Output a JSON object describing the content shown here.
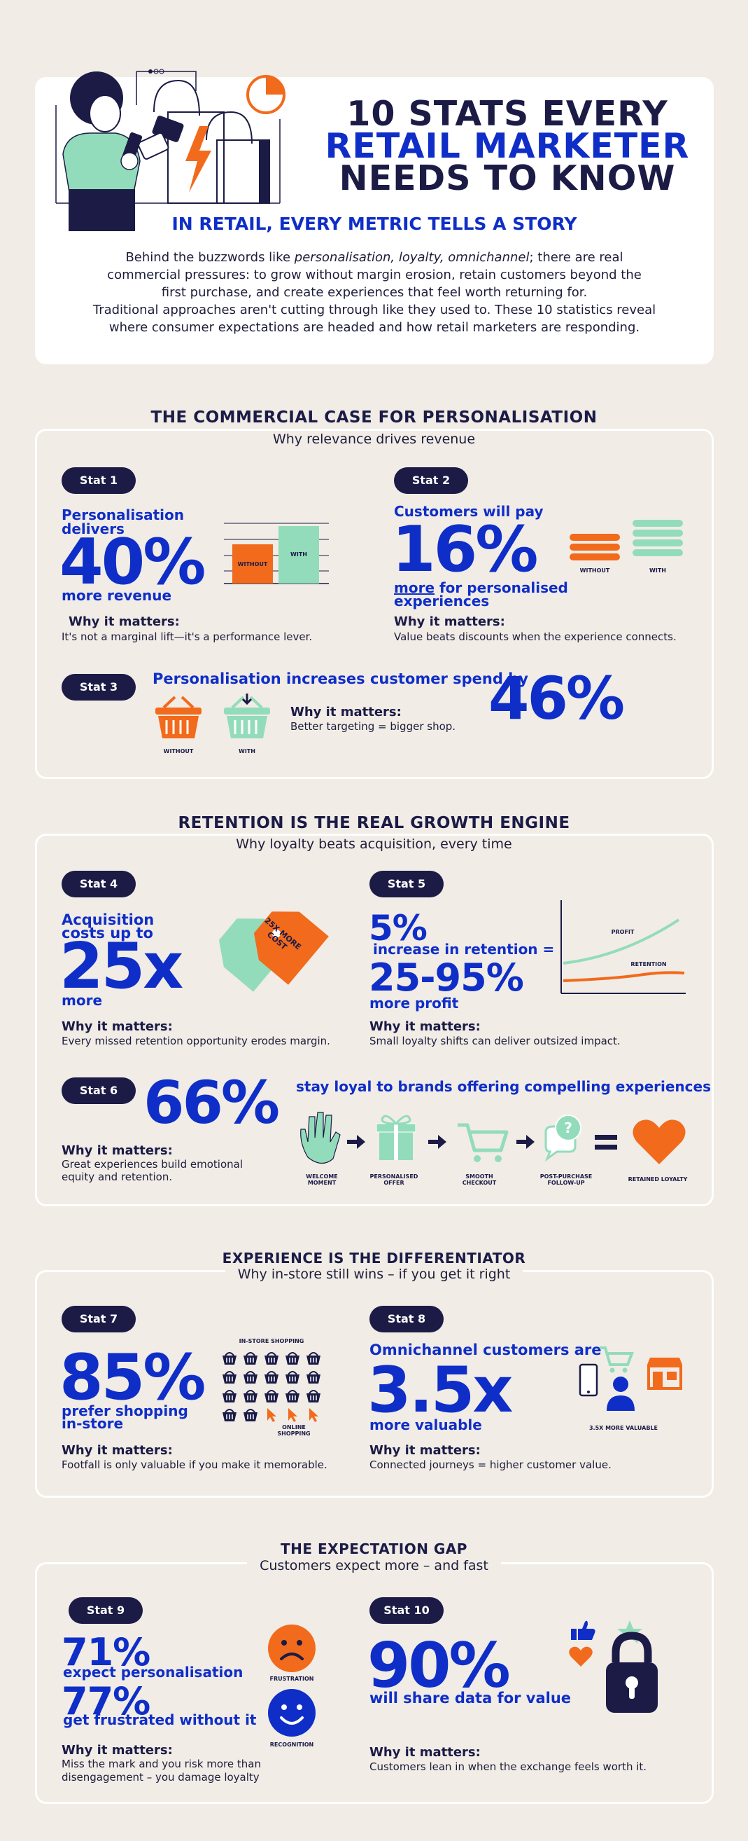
{
  "header": {
    "title_line1": "10 STATS EVERY",
    "title_line2": "RETAIL MARKETER",
    "title_line3": "NEEDS TO KNOW",
    "subtitle": "IN RETAIL, EVERY METRIC TELLS A STORY",
    "intro_1a": "Behind the buzzwords like ",
    "intro_1b": "personalisation, loyalty, omnichannel",
    "intro_1c": "; there are real",
    "intro_2": "commercial pressures: to grow without margin erosion, retain customers beyond the",
    "intro_3": "first purchase, and create experiences that feel worth returning for.",
    "intro_4": "Traditional approaches aren't cutting through like they used to. These 10 statistics reveal",
    "intro_5": "where consumer expectations are headed and how retail marketers are responding."
  },
  "section1": {
    "title": "THE COMMERCIAL CASE FOR PERSONALISATION",
    "subtitle": "Why relevance drives revenue",
    "stat1": {
      "pill": "Stat 1",
      "lead1": "Personalisation",
      "lead2": "delivers",
      "value": "40%",
      "tail": "more revenue",
      "wm_title": "Why it matters:",
      "wm_text": "It's not a marginal lift—it's a performance lever.",
      "chart_without": "WITHOUT",
      "chart_with": "WITH"
    },
    "stat2": {
      "pill": "Stat 2",
      "lead": "Customers will pay",
      "value": "16%",
      "tail_u": "more",
      "tail_rest": " for personalised",
      "tail2": "experiences",
      "wm_title": "Why it matters:",
      "wm_text": "Value beats discounts when the experience connects.",
      "label_without": "WITHOUT",
      "label_with": "WITH"
    },
    "stat3": {
      "pill": "Stat 3",
      "lead": "Personalisation increases customer spend by",
      "value": "46%",
      "wm_title": "Why it matters:",
      "wm_text": "Better targeting = bigger shop.",
      "label_without": "WITHOUT",
      "label_with": "WITH"
    }
  },
  "section2": {
    "title": "RETENTION IS THE REAL GROWTH ENGINE",
    "subtitle": "Why loyalty beats acquisition, every time",
    "stat4": {
      "pill": "Stat 4",
      "lead1": "Acquisition",
      "lead2": "costs up to",
      "value": "25x",
      "tail": "more",
      "tag_text": "25X MORE COST",
      "wm_title": "Why it matters:",
      "wm_text": "Every missed retention opportunity erodes margin."
    },
    "stat5": {
      "pill": "Stat 5",
      "value1": "5%",
      "lead": "increase in retention =",
      "value2": "25-95%",
      "tail": "more profit",
      "label_profit": "PROFIT",
      "label_retention": "RETENTION",
      "wm_title": "Why it matters:",
      "wm_text": "Small loyalty shifts can deliver outsized impact."
    },
    "stat6": {
      "pill": "Stat 6",
      "value": "66%",
      "lead": "stay loyal to brands offering compelling experiences",
      "wm_title": "Why it matters:",
      "wm_text1": "Great experiences build emotional",
      "wm_text2": "equity and retention.",
      "step1a": "WELCOME",
      "step1b": "MOMENT",
      "step2a": "PERSONALISED",
      "step2b": "OFFER",
      "step3a": "SMOOTH",
      "step3b": "CHECKOUT",
      "step4a": "POST-PURCHASE",
      "step4b": "FOLLOW-UP",
      "step5": "RETAINED LOYALTY"
    }
  },
  "section3": {
    "title": "EXPERIENCE IS THE DIFFERENTIATOR",
    "subtitle": "Why in-store still wins – if you get it right",
    "stat7": {
      "pill": "Stat 7",
      "value": "85%",
      "tail1": "prefer shopping",
      "tail2": "in-store",
      "label_instore": "IN-STORE SHOPPING",
      "label_online1": "ONLINE",
      "label_online2": "SHOPPING",
      "wm_title": "Why it matters:",
      "wm_text": "Footfall is only valuable if you make it memorable."
    },
    "stat8": {
      "pill": "Stat 8",
      "lead": "Omnichannel customers are",
      "value": "3.5x",
      "tail": "more valuable",
      "label_more": "3.5X MORE VALUABLE",
      "wm_title": "Why it matters:",
      "wm_text": "Connected journeys = higher customer value."
    }
  },
  "section4": {
    "title": "THE EXPECTATION GAP",
    "subtitle": "Customers expect more – and fast",
    "stat9": {
      "pill": "Stat 9",
      "value1": "71%",
      "text1": "expect personalisation",
      "value2": "77%",
      "text2": "get frustrated without it",
      "label_frustration": "FRUSTRATION",
      "label_recognition": "RECOGNITION",
      "wm_title": "Why it matters:",
      "wm_text1": "Miss the mark and you risk more than",
      "wm_text2": "disengagement – you damage loyalty"
    },
    "stat10": {
      "pill": "Stat 10",
      "value": "90%",
      "tail": "will share data for value",
      "wm_title": "Why it matters:",
      "wm_text": "Customers lean in when the exchange feels worth it."
    }
  },
  "colors": {
    "navy": "#1b1b46",
    "blue": "#0f2ec8",
    "orange": "#f26a1b",
    "mint": "#93dcbb",
    "cream": "#f1ece6"
  }
}
